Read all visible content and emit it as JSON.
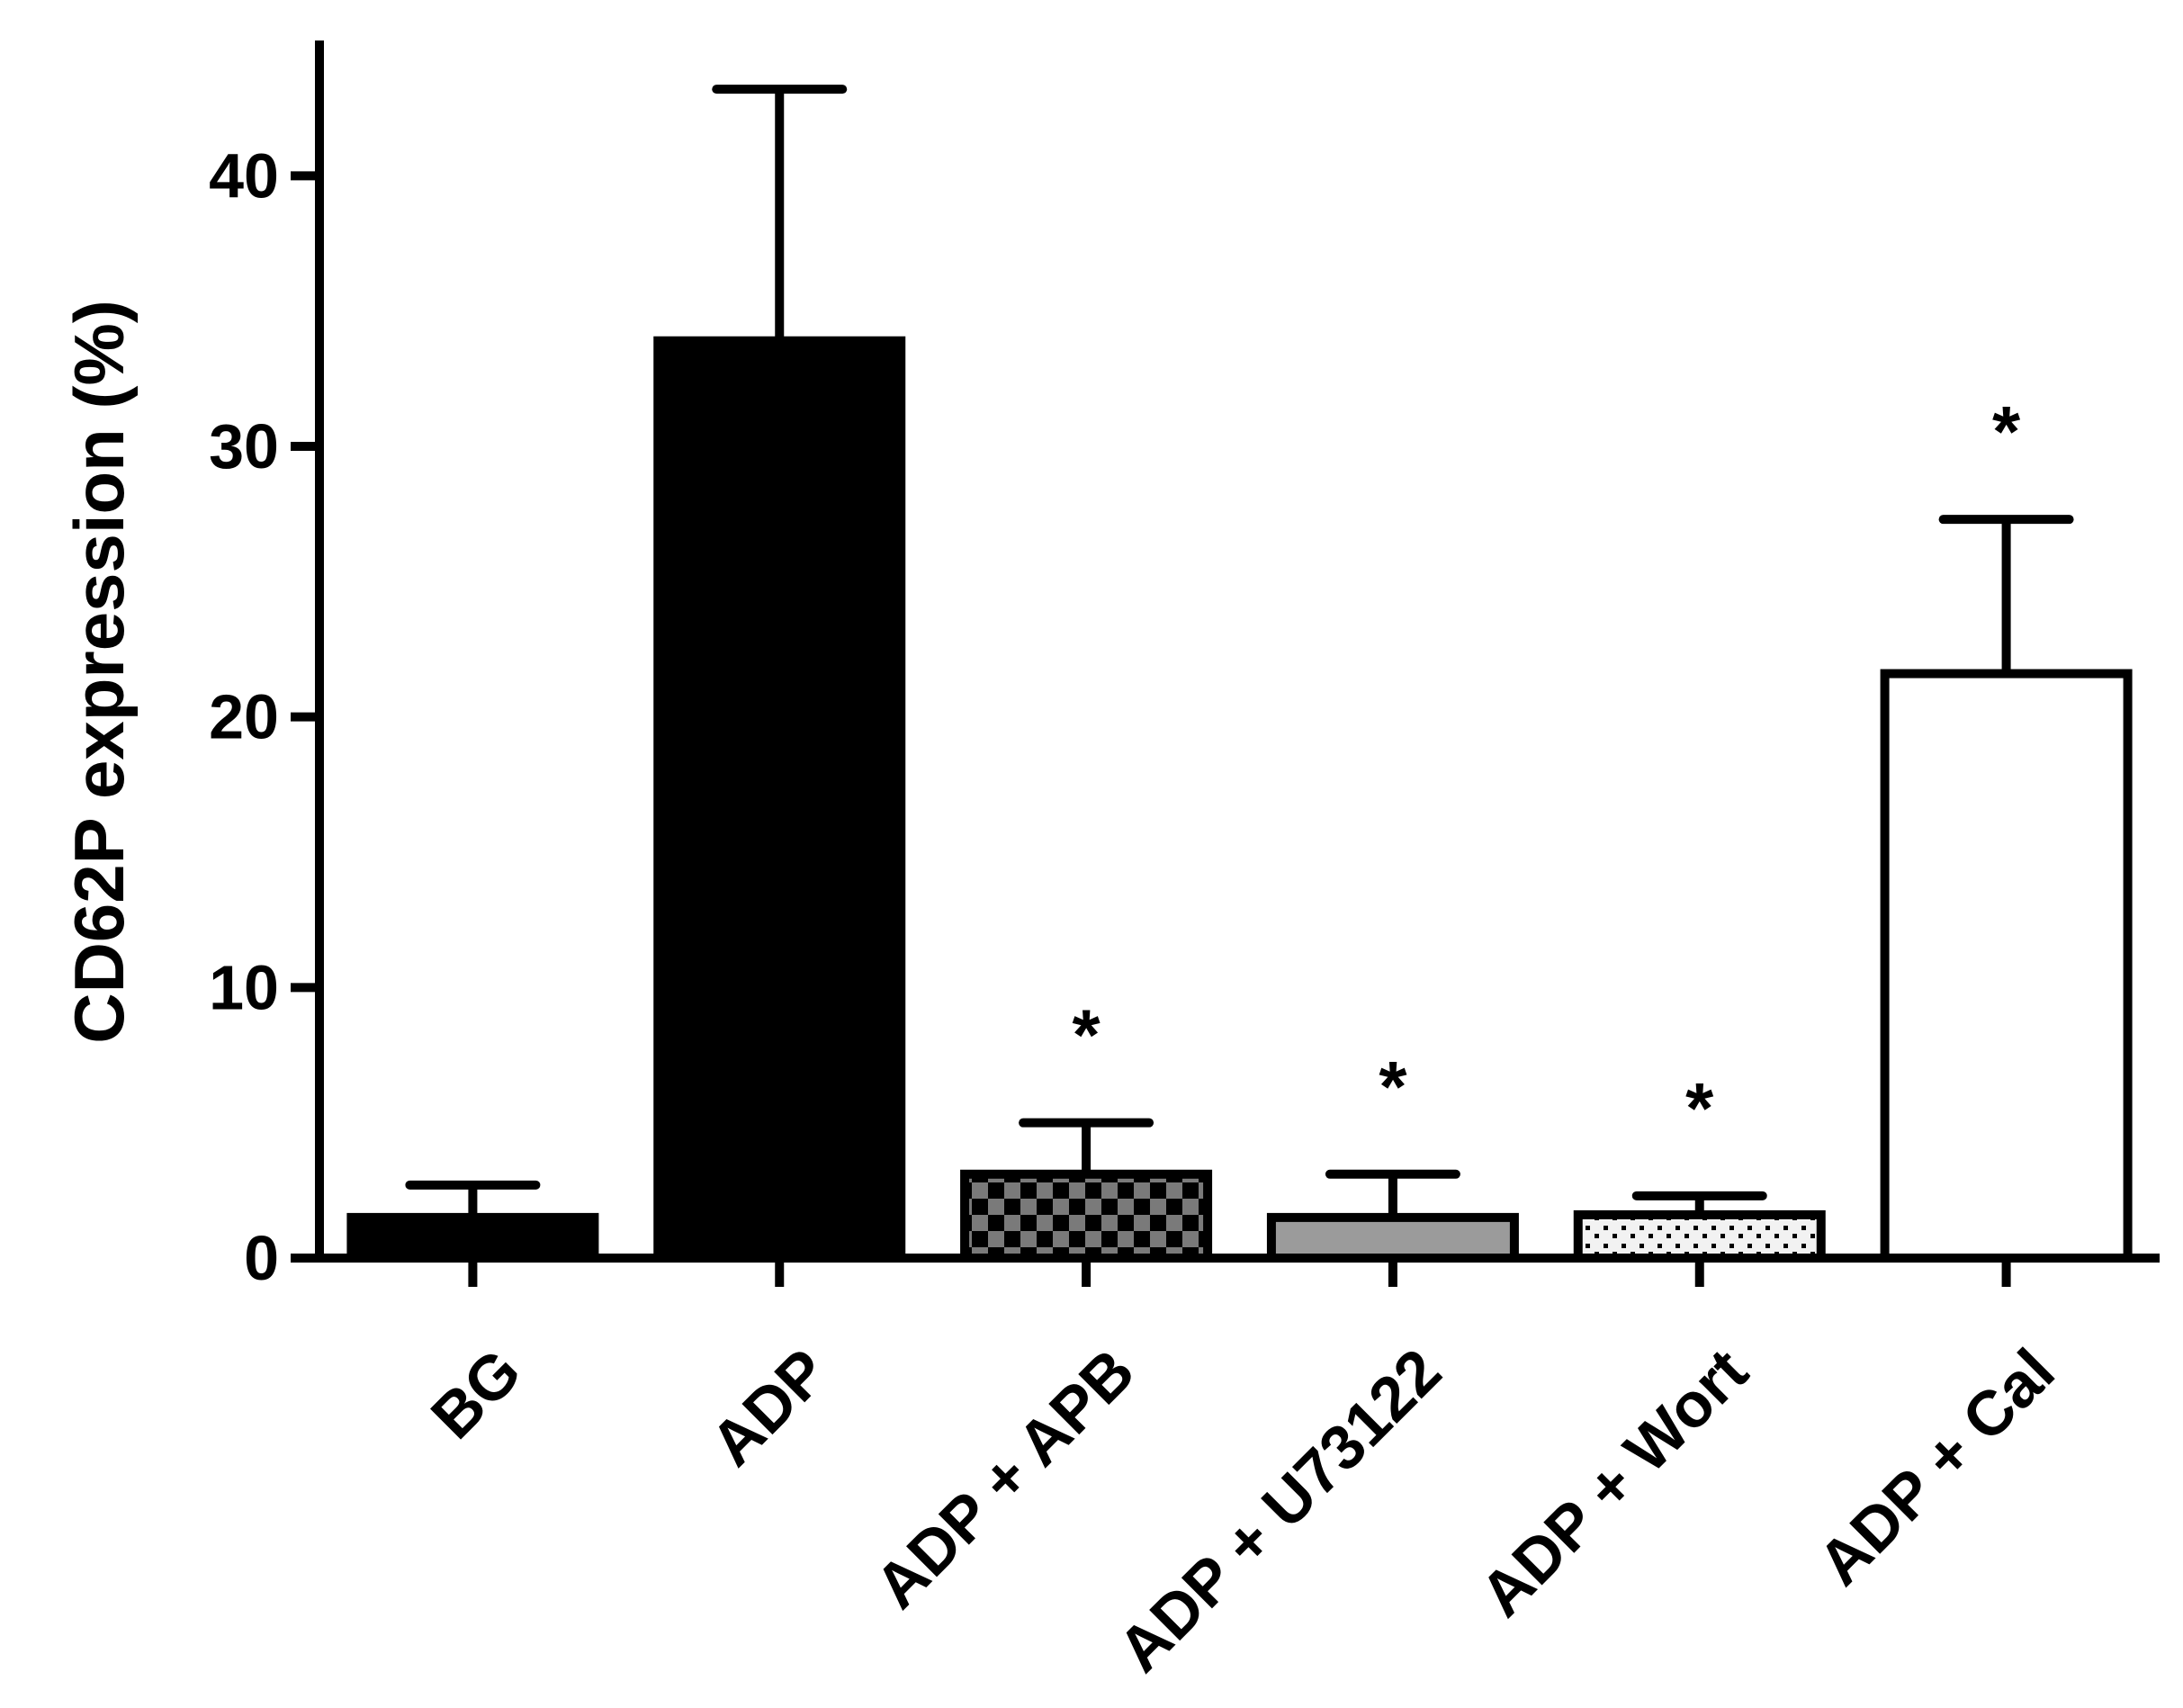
{
  "chart_data": {
    "type": "bar",
    "categories": [
      "BG",
      "ADP",
      "ADP + APB",
      "ADP + U73122",
      "ADP + Wort",
      "ADP + Cal"
    ],
    "values": [
      1.5,
      33.9,
      3.1,
      1.5,
      1.6,
      21.6
    ],
    "error_upper": [
      2.7,
      43.2,
      5.0,
      3.1,
      2.3,
      27.3
    ],
    "significance": [
      "",
      "",
      "*",
      "*",
      "*",
      "*"
    ],
    "bar_fills": [
      "solid-black",
      "solid-black",
      "checkerboard",
      "solid-gray",
      "dotted-light",
      "white"
    ],
    "ylabel": "CD62P expression (%)",
    "xlabel": "",
    "ylim": [
      0,
      45
    ],
    "yticks": [
      0,
      10,
      20,
      30,
      40
    ],
    "grid": false,
    "legend": "none"
  },
  "colors": {
    "axis": "#000000",
    "bar_black": "#000000",
    "bar_gray": "#9b9b9b",
    "checker_dark": "#000000",
    "checker_light": "#7a7a7a",
    "dot_bg": "#f2f2f2",
    "dot_fg": "#000000",
    "bar_white": "#ffffff"
  }
}
